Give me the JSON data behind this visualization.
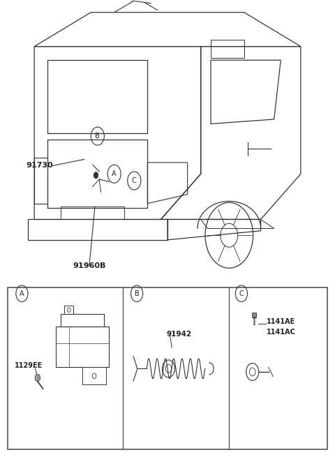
{
  "bg_color": "#ffffff",
  "border_color": "#555555",
  "text_color": "#222222",
  "line_color": "#333333",
  "label_91730": "91730",
  "label_91960B": "91960B",
  "label_1129EE": "1129EE",
  "label_91942": "91942",
  "label_1141AE": "1141AE",
  "label_1141AC": "1141AC"
}
